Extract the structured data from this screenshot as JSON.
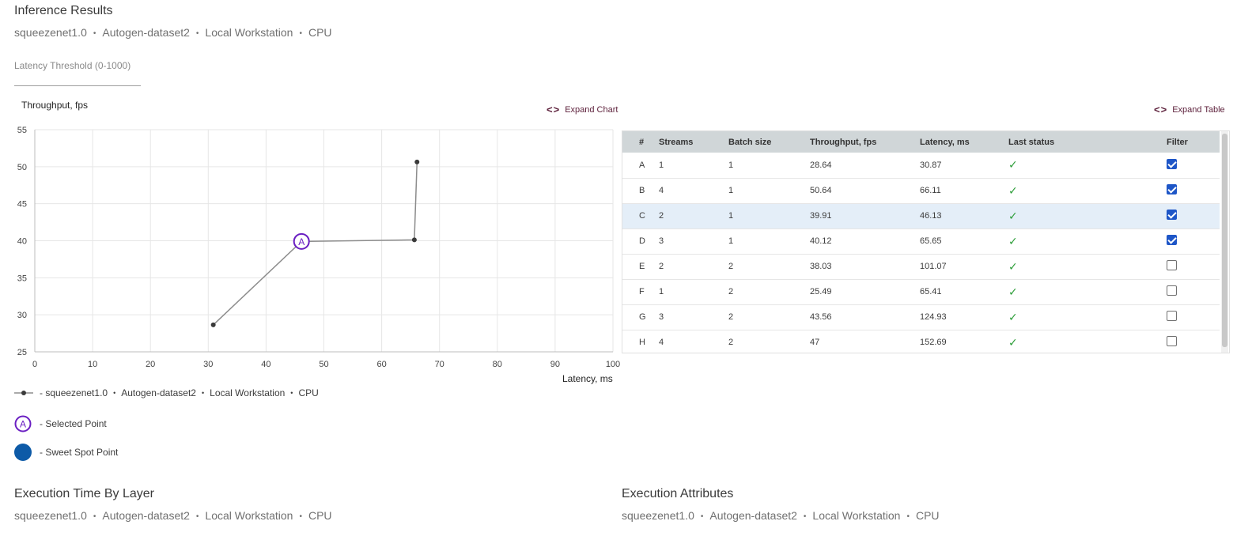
{
  "header": {
    "title": "Inference Results",
    "subtitle": [
      "squeezenet1.0",
      "Autogen-dataset2",
      "Local Workstation",
      "CPU"
    ]
  },
  "threshold": {
    "label": "Latency Threshold (0-1000)",
    "value": ""
  },
  "chart": {
    "expand_label": "Expand Chart",
    "expand_icon": "code-chevrons-icon"
  },
  "chart_data": {
    "type": "line",
    "title": "",
    "xlabel": "Latency, ms",
    "ylabel": "Throughput, fps",
    "xlim": [
      0,
      100
    ],
    "ylim": [
      25,
      55
    ],
    "xticks": [
      0,
      10,
      20,
      30,
      40,
      50,
      60,
      70,
      80,
      90,
      100
    ],
    "yticks": [
      25,
      30,
      35,
      40,
      45,
      50,
      55
    ],
    "grid": true,
    "series": [
      {
        "name": "squeezenet1.0 • Autogen-dataset2 • Local Workstation • CPU",
        "points": [
          {
            "x": 30.87,
            "y": 28.64
          },
          {
            "x": 46.13,
            "y": 39.91,
            "label": "A",
            "selected": true
          },
          {
            "x": 65.65,
            "y": 40.12
          },
          {
            "x": 66.11,
            "y": 50.64
          }
        ]
      }
    ],
    "colors": {
      "line": "#8c8c8c",
      "point": "#3a3a3a",
      "selected": "#6a1fc2",
      "sweet_spot": "#0d5aa7"
    }
  },
  "legend": {
    "series_prefix": "-",
    "series_parts": [
      "squeezenet1.0",
      "Autogen-dataset2",
      "Local Workstation",
      "CPU"
    ],
    "selected_marker": "A",
    "selected_label": "- Selected Point",
    "sweet_label": "- Sweet Spot Point"
  },
  "table": {
    "expand_label": "Expand Table",
    "expand_icon": "code-chevrons-icon",
    "columns": [
      "#",
      "Streams",
      "Batch size",
      "Throughput, fps",
      "Latency, ms",
      "Last status",
      "Filter"
    ],
    "rows": [
      {
        "id": "A",
        "streams": "1",
        "batch": "1",
        "throughput": "28.64",
        "latency": "30.87",
        "status": "success",
        "filter": true,
        "selected": false
      },
      {
        "id": "B",
        "streams": "4",
        "batch": "1",
        "throughput": "50.64",
        "latency": "66.11",
        "status": "success",
        "filter": true,
        "selected": false
      },
      {
        "id": "C",
        "streams": "2",
        "batch": "1",
        "throughput": "39.91",
        "latency": "46.13",
        "status": "success",
        "filter": true,
        "selected": true
      },
      {
        "id": "D",
        "streams": "3",
        "batch": "1",
        "throughput": "40.12",
        "latency": "65.65",
        "status": "success",
        "filter": true,
        "selected": false
      },
      {
        "id": "E",
        "streams": "2",
        "batch": "2",
        "throughput": "38.03",
        "latency": "101.07",
        "status": "success",
        "filter": false,
        "selected": false
      },
      {
        "id": "F",
        "streams": "1",
        "batch": "2",
        "throughput": "25.49",
        "latency": "65.41",
        "status": "success",
        "filter": false,
        "selected": false
      },
      {
        "id": "G",
        "streams": "3",
        "batch": "2",
        "throughput": "43.56",
        "latency": "124.93",
        "status": "success",
        "filter": false,
        "selected": false
      },
      {
        "id": "H",
        "streams": "4",
        "batch": "2",
        "throughput": "47",
        "latency": "152.69",
        "status": "success",
        "filter": false,
        "selected": false
      }
    ]
  },
  "sections": {
    "exec_time": {
      "title": "Execution Time By Layer",
      "subtitle": [
        "squeezenet1.0",
        "Autogen-dataset2",
        "Local Workstation",
        "CPU"
      ]
    },
    "exec_attrs": {
      "title": "Execution Attributes",
      "subtitle": [
        "squeezenet1.0",
        "Autogen-dataset2",
        "Local Workstation",
        "CPU"
      ]
    }
  }
}
